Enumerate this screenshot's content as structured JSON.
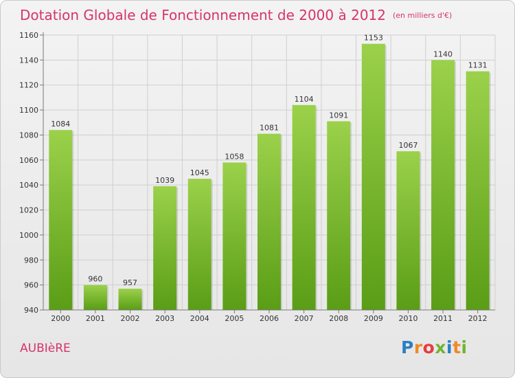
{
  "title": "Dotation Globale de Fonctionnement de 2000 à 2012",
  "subtitle": "(en milliers d'€)",
  "town": "AUBIèRE",
  "logo": {
    "text": "Proxiti",
    "letters": [
      "P",
      "r",
      "o",
      "x",
      "i",
      "t",
      "i"
    ],
    "colors": [
      "#2b7fc3",
      "#f08a24",
      "#e53e3e",
      "#6fb530",
      "#2b7fc3",
      "#f08a24",
      "#6fb530"
    ]
  },
  "colors": {
    "accent": "#d6336c",
    "bar_top": "#9bd14b",
    "bar_bottom": "#5a9d16",
    "grid": "#cfcfcf"
  },
  "chart_data": {
    "type": "bar",
    "categories": [
      "2000",
      "2001",
      "2002",
      "2003",
      "2004",
      "2005",
      "2006",
      "2007",
      "2008",
      "2009",
      "2010",
      "2011",
      "2012"
    ],
    "values": [
      1084,
      960,
      957,
      1039,
      1045,
      1058,
      1081,
      1104,
      1091,
      1153,
      1067,
      1140,
      1131
    ],
    "yticks": [
      940,
      960,
      980,
      1000,
      1020,
      1040,
      1060,
      1080,
      1100,
      1120,
      1140,
      1160
    ],
    "ylim": [
      940,
      1160
    ],
    "grid": true,
    "data_labels": true
  }
}
